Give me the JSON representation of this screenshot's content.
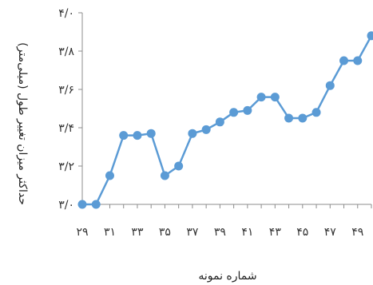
{
  "chart_data": {
    "type": "line",
    "title": "",
    "xlabel": "شماره نمونه",
    "ylabel": "حداکثر میزان تغییر طول (میلی‌متر)",
    "x": [
      29,
      30,
      31,
      32,
      33,
      34,
      35,
      36,
      37,
      38,
      39,
      40,
      41,
      42,
      43,
      44,
      45,
      46,
      47,
      48,
      49,
      50
    ],
    "x_tick_values": [
      29,
      31,
      33,
      35,
      37,
      39,
      41,
      43,
      45,
      47,
      49
    ],
    "x_tick_labels": [
      "۲۹",
      "۳۱",
      "۳۳",
      "۳۵",
      "۳۷",
      "۳۹",
      "۴۱",
      "۴۳",
      "۴۵",
      "۴۷",
      "۴۹"
    ],
    "y_tick_values": [
      3.0,
      3.2,
      3.4,
      3.6,
      3.8,
      4.0
    ],
    "y_tick_labels": [
      "۳/۰",
      "۳/۲",
      "۳/۴",
      "۳/۶",
      "۳/۸",
      "۴/۰"
    ],
    "xlim": [
      29,
      50
    ],
    "ylim": [
      3.0,
      4.0
    ],
    "grid": false,
    "legend": "none",
    "series": [
      {
        "color": "#5b9bd5",
        "values": [
          3.0,
          3.0,
          3.15,
          3.36,
          3.36,
          3.37,
          3.15,
          3.2,
          3.37,
          3.39,
          3.43,
          3.48,
          3.49,
          3.56,
          3.56,
          3.45,
          3.45,
          3.48,
          3.62,
          3.75,
          3.75,
          3.88
        ]
      }
    ]
  }
}
